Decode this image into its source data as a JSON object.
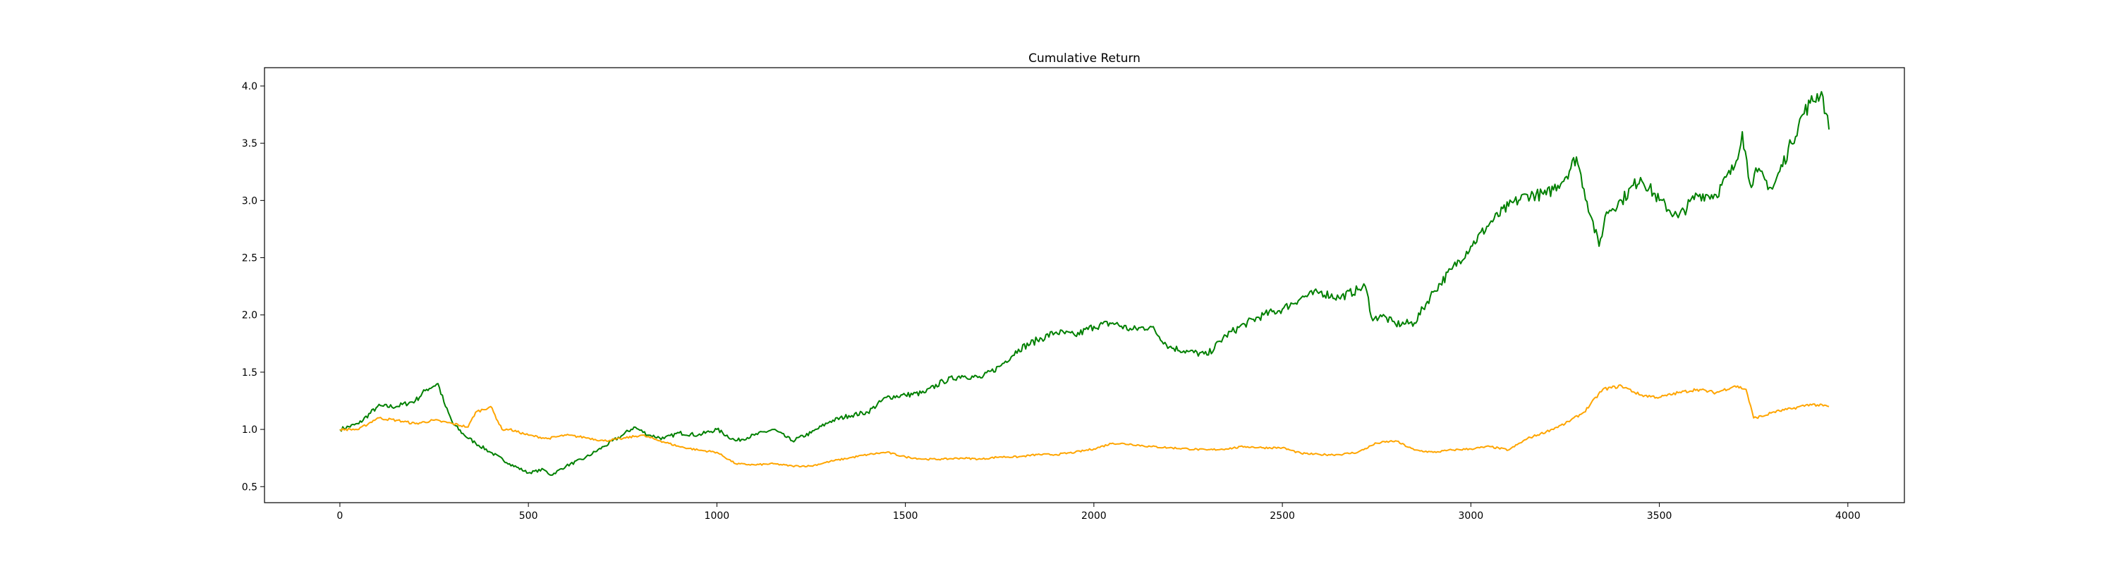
{
  "chart_data": {
    "type": "line",
    "title": "Cumulative Return",
    "xlabel": "",
    "ylabel": "",
    "xlim": [
      -200,
      4150
    ],
    "ylim": [
      0.36,
      4.16
    ],
    "x_ticks": [
      0,
      500,
      1000,
      1500,
      2000,
      2500,
      3000,
      3500,
      4000
    ],
    "x_tick_labels": [
      "0",
      "500",
      "1000",
      "1500",
      "2000",
      "2500",
      "3000",
      "3500",
      "4000"
    ],
    "y_ticks": [
      0.5,
      1.0,
      1.5,
      2.0,
      2.5,
      3.0,
      3.5,
      4.0
    ],
    "y_tick_labels": [
      "0.5",
      "1.0",
      "1.5",
      "2.0",
      "2.5",
      "3.0",
      "3.5",
      "4.0"
    ],
    "grid": false,
    "legend": "none",
    "series": [
      {
        "color": "#008000",
        "x": [
          0,
          50,
          100,
          150,
          200,
          230,
          260,
          280,
          300,
          330,
          360,
          400,
          450,
          500,
          540,
          560,
          600,
          650,
          700,
          750,
          780,
          820,
          860,
          900,
          950,
          1000,
          1050,
          1100,
          1150,
          1200,
          1250,
          1300,
          1350,
          1400,
          1450,
          1500,
          1550,
          1600,
          1650,
          1700,
          1750,
          1800,
          1850,
          1900,
          1950,
          2000,
          2050,
          2100,
          2150,
          2200,
          2250,
          2300,
          2350,
          2400,
          2450,
          2500,
          2550,
          2600,
          2650,
          2700,
          2720,
          2740,
          2760,
          2800,
          2850,
          2900,
          2950,
          3000,
          3050,
          3100,
          3150,
          3200,
          3250,
          3280,
          3300,
          3320,
          3340,
          3360,
          3400,
          3450,
          3500,
          3550,
          3600,
          3650,
          3700,
          3720,
          3740,
          3760,
          3800,
          3850,
          3880,
          3900,
          3930,
          3950
        ],
        "values": [
          1.0,
          1.05,
          1.2,
          1.2,
          1.25,
          1.35,
          1.4,
          1.2,
          1.05,
          0.95,
          0.88,
          0.8,
          0.7,
          0.62,
          0.65,
          0.6,
          0.68,
          0.75,
          0.85,
          0.95,
          1.02,
          0.95,
          0.92,
          0.97,
          0.95,
          1.0,
          0.9,
          0.95,
          1.0,
          0.9,
          0.97,
          1.07,
          1.12,
          1.15,
          1.28,
          1.3,
          1.32,
          1.42,
          1.47,
          1.45,
          1.55,
          1.7,
          1.78,
          1.85,
          1.82,
          1.9,
          1.93,
          1.87,
          1.9,
          1.72,
          1.68,
          1.65,
          1.82,
          1.92,
          2.0,
          2.05,
          2.15,
          2.2,
          2.15,
          2.22,
          2.25,
          1.95,
          2.0,
          1.92,
          1.93,
          2.2,
          2.4,
          2.6,
          2.8,
          2.95,
          3.05,
          3.05,
          3.2,
          3.38,
          3.1,
          2.85,
          2.6,
          2.9,
          3.0,
          3.2,
          3.0,
          2.85,
          3.05,
          3.05,
          3.3,
          3.6,
          3.15,
          3.25,
          3.1,
          3.5,
          3.75,
          3.85,
          3.95,
          3.62
        ]
      },
      {
        "color": "#FFA500",
        "x": [
          0,
          50,
          100,
          150,
          200,
          250,
          300,
          340,
          360,
          400,
          430,
          450,
          500,
          550,
          600,
          650,
          700,
          750,
          800,
          850,
          900,
          950,
          1000,
          1050,
          1100,
          1150,
          1200,
          1250,
          1300,
          1350,
          1400,
          1450,
          1500,
          1550,
          1600,
          1650,
          1700,
          1750,
          1800,
          1850,
          1900,
          1950,
          2000,
          2050,
          2100,
          2150,
          2200,
          2250,
          2300,
          2350,
          2400,
          2450,
          2500,
          2550,
          2600,
          2650,
          2700,
          2750,
          2800,
          2850,
          2900,
          2950,
          3000,
          3050,
          3100,
          3150,
          3200,
          3250,
          3300,
          3350,
          3400,
          3450,
          3500,
          3550,
          3600,
          3650,
          3700,
          3730,
          3750,
          3780,
          3800,
          3850,
          3900,
          3950
        ],
        "values": [
          1.0,
          1.0,
          1.1,
          1.08,
          1.05,
          1.08,
          1.05,
          1.02,
          1.15,
          1.2,
          1.0,
          1.0,
          0.95,
          0.92,
          0.95,
          0.93,
          0.9,
          0.92,
          0.95,
          0.9,
          0.85,
          0.82,
          0.8,
          0.7,
          0.69,
          0.7,
          0.68,
          0.68,
          0.72,
          0.75,
          0.78,
          0.8,
          0.76,
          0.74,
          0.74,
          0.75,
          0.74,
          0.76,
          0.76,
          0.78,
          0.78,
          0.8,
          0.83,
          0.88,
          0.87,
          0.85,
          0.84,
          0.83,
          0.82,
          0.83,
          0.85,
          0.84,
          0.84,
          0.79,
          0.78,
          0.78,
          0.8,
          0.88,
          0.9,
          0.82,
          0.8,
          0.82,
          0.83,
          0.85,
          0.82,
          0.92,
          0.98,
          1.05,
          1.15,
          1.35,
          1.38,
          1.3,
          1.28,
          1.32,
          1.35,
          1.32,
          1.38,
          1.35,
          1.1,
          1.12,
          1.15,
          1.18,
          1.22,
          1.2
        ]
      }
    ]
  }
}
